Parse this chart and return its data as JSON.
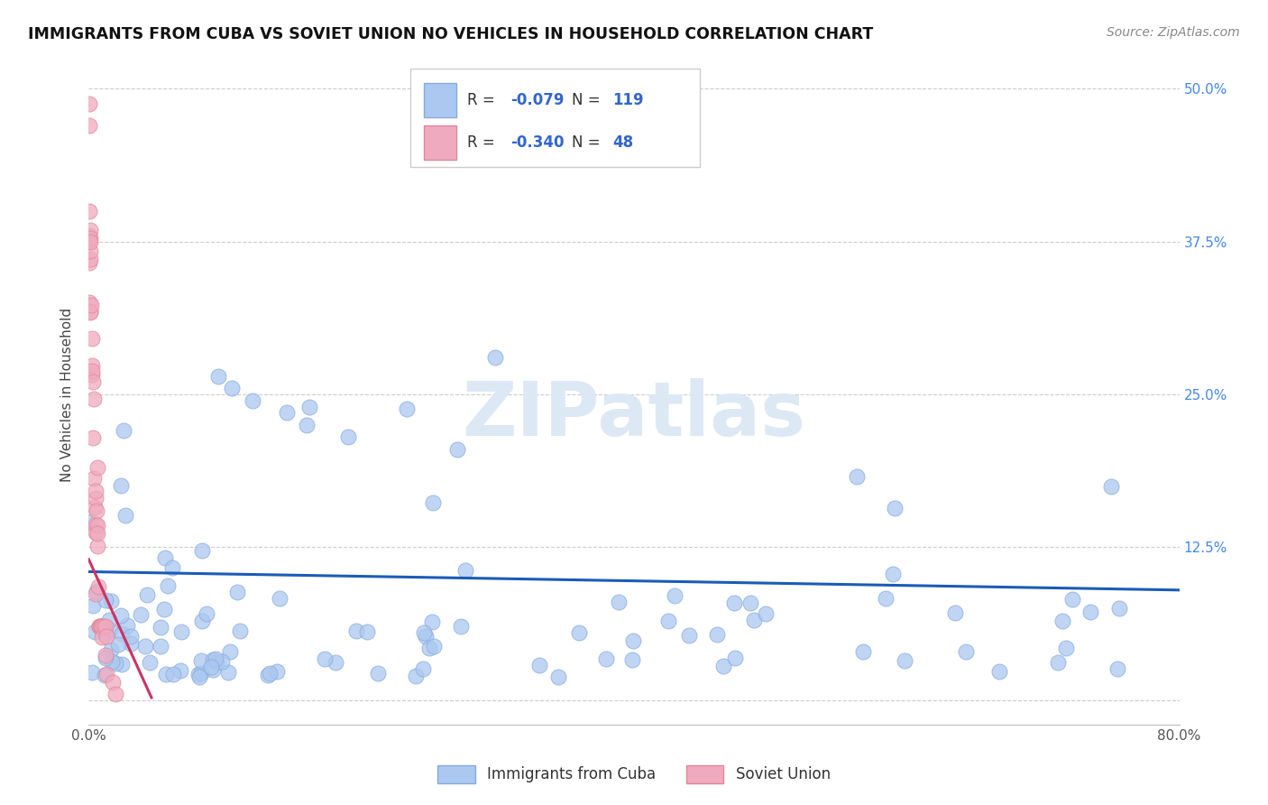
{
  "title": "IMMIGRANTS FROM CUBA VS SOVIET UNION NO VEHICLES IN HOUSEHOLD CORRELATION CHART",
  "source": "Source: ZipAtlas.com",
  "ylabel": "No Vehicles in Household",
  "xlim": [
    0.0,
    0.8
  ],
  "ylim": [
    -0.02,
    0.52
  ],
  "xtick_positions": [
    0.0,
    0.2,
    0.4,
    0.6,
    0.8
  ],
  "xticklabels": [
    "0.0%",
    "",
    "",
    "",
    "80.0%"
  ],
  "ytick_positions": [
    0.0,
    0.125,
    0.25,
    0.375,
    0.5
  ],
  "yticklabels_left": [
    "",
    "",
    "",
    "",
    ""
  ],
  "yticklabels_right": [
    "",
    "12.5%",
    "25.0%",
    "37.5%",
    "50.0%"
  ],
  "cuba_color": "#aac8f0",
  "cuba_edge": "#88aadd",
  "soviet_color": "#f0aac0",
  "soviet_edge": "#dd8898",
  "trendline_cuba_color": "#1a5cb8",
  "trendline_soviet_color": "#cc3366",
  "R_value_color": "#3366cc",
  "N_value_color": "#3366cc",
  "label_text_color": "#333366",
  "R_cuba": "-0.079",
  "N_cuba": "119",
  "R_soviet": "-0.340",
  "N_soviet": "48",
  "label_cuba": "Immigrants from Cuba",
  "label_soviet": "Soviet Union",
  "watermark_text": "ZIPatlas",
  "watermark_color": "#dde8f5",
  "background_color": "#ffffff",
  "grid_color": "#cccccc",
  "title_color": "#111111",
  "source_color": "#888888",
  "ylabel_color": "#444444",
  "legend_edge_color": "#cccccc",
  "axis_line_color": "#bbbbbb",
  "ytick_color_right": "#4488ee"
}
